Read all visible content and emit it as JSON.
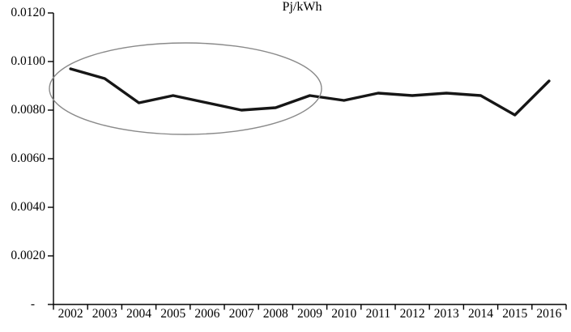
{
  "colors": {
    "line": "#161616",
    "axis": "#000000",
    "ellipse": "#8a8a8a",
    "background": "#ffffff"
  },
  "chart_data": {
    "type": "line",
    "title": "Pj/kWh",
    "categories": [
      "2002",
      "2003",
      "2004",
      "2005",
      "2006",
      "2007",
      "2008",
      "2009",
      "2010",
      "2011",
      "2012",
      "2013",
      "2014",
      "2015",
      "2016"
    ],
    "series": [
      {
        "name": "Pj/kWh",
        "values": [
          0.0097,
          0.0093,
          0.0083,
          0.0086,
          0.0083,
          0.008,
          0.0081,
          0.0086,
          0.0084,
          0.0087,
          0.0086,
          0.0087,
          0.0086,
          0.0078,
          0.0092
        ]
      }
    ],
    "ylim": [
      0,
      0.012
    ],
    "ytick_interval": 0.002,
    "ytick_labels": [
      "0.0120",
      "0.0100",
      "0.0080",
      "0.0060",
      "0.0040",
      "0.0020",
      "-"
    ],
    "xlabel": "",
    "ylabel": "",
    "grid": "off",
    "legend": "none",
    "annotation": {
      "shape": "ellipse",
      "highlights_categories": [
        "2002",
        "2003",
        "2004",
        "2005",
        "2006",
        "2007",
        "2008",
        "2009"
      ]
    }
  }
}
